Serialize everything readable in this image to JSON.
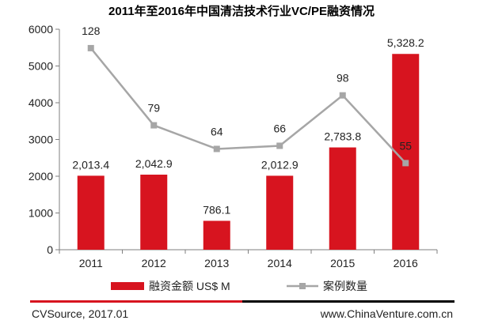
{
  "chart_data": {
    "type": "bar",
    "title": "2011年至2016年中国清洁技术行业VC/PE融资情况",
    "categories": [
      "2011",
      "2012",
      "2013",
      "2014",
      "2015",
      "2016"
    ],
    "ylim": [
      0,
      6000
    ],
    "yticks": [
      0,
      1000,
      2000,
      3000,
      4000,
      5000,
      6000
    ],
    "grid": false,
    "legend_position": "bottom",
    "series": [
      {
        "name": "融资金额 US$ M",
        "type": "bar",
        "color": "#d7141f",
        "values": [
          2013.4,
          2042.9,
          786.1,
          2012.9,
          2783.8,
          5328.2
        ],
        "labels": [
          "2,013.4",
          "2,042.9",
          "786.1",
          "2,012.9",
          "2,783.8",
          "5,328.2"
        ]
      },
      {
        "name": "案例数量",
        "type": "line",
        "color": "#a6a6a6",
        "values": [
          128,
          79,
          64,
          66,
          98,
          55
        ],
        "labels": [
          "128",
          "79",
          "64",
          "66",
          "98",
          "55"
        ]
      }
    ]
  },
  "footer": {
    "source": "CVSource, 2017.01",
    "website": "www.ChinaVenture.com.cn",
    "accent_colors": [
      "#d7141f",
      "#000000"
    ]
  }
}
